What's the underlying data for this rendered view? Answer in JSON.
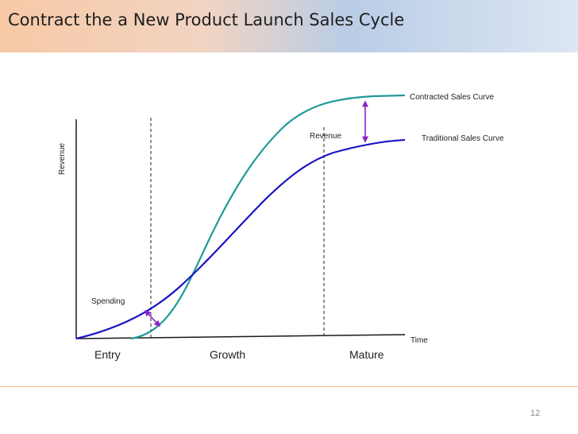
{
  "slide": {
    "title": "Contract the a New Product Launch Sales Cycle",
    "page_number": "12"
  },
  "diagram": {
    "y_axis_label": "Revenue",
    "x_axis_label": "Time",
    "phases": [
      "Entry",
      "Growth",
      "Mature"
    ],
    "curves": [
      {
        "name": "Contracted Sales Curve",
        "color": "#1e9a98"
      },
      {
        "name": "Traditional Sales Curve",
        "color": "#1a14c4"
      }
    ],
    "annotations": {
      "revenue": "Revenue",
      "spending": "Spending"
    },
    "arrow_color": "#8b20c8"
  }
}
